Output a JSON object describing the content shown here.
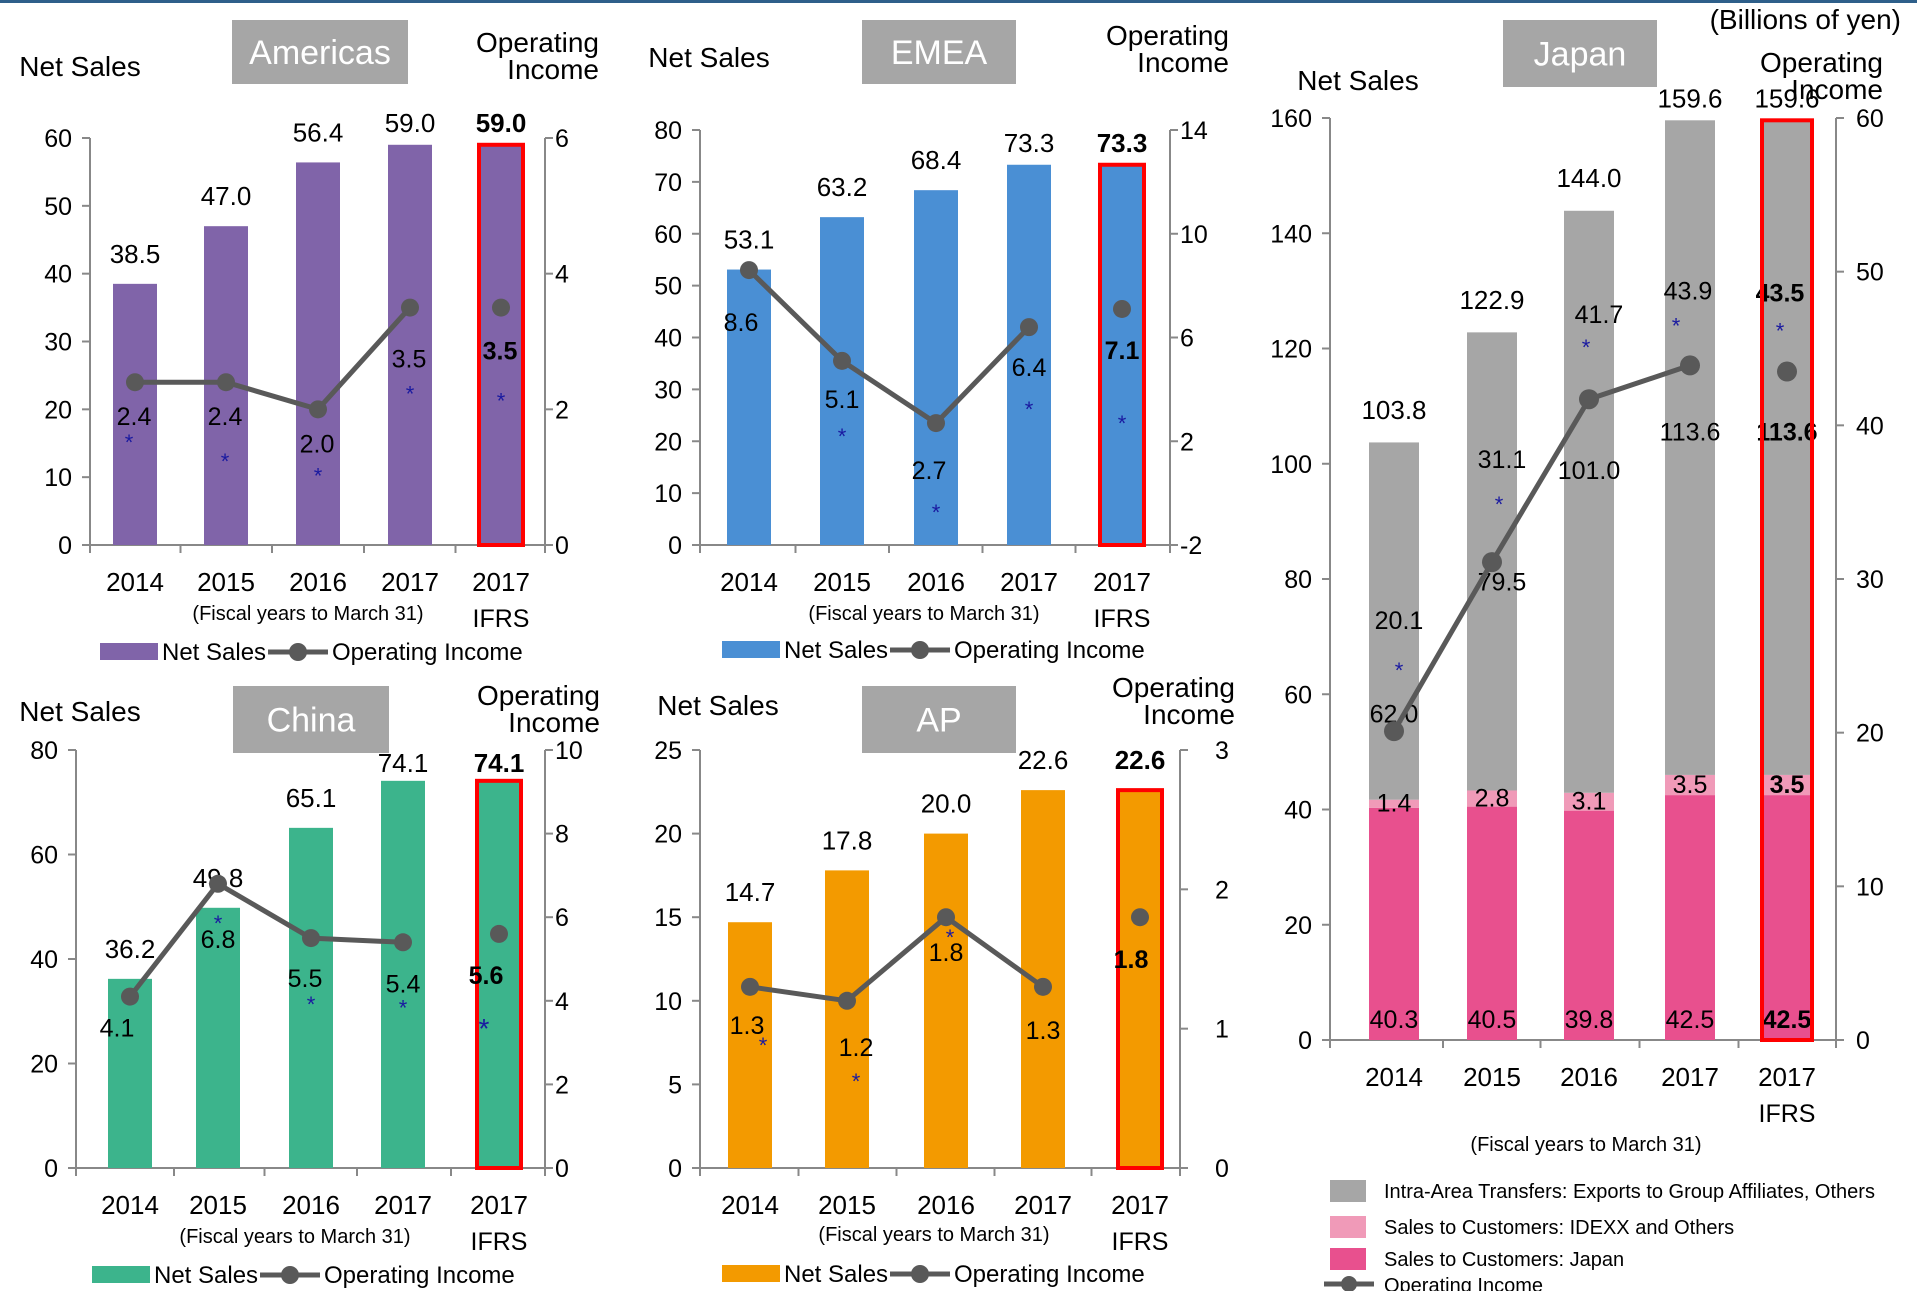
{
  "units_label": "(Billions of yen)",
  "colors": {
    "gray": "#a6a6a6",
    "highlight": "#ff0000",
    "line": "#595959",
    "star": "#1a1aa0"
  },
  "chart_data": [
    {
      "type": "bar",
      "title": "Americas",
      "left_axis_title": "Net Sales",
      "right_axis_title": [
        "Operating",
        "Income"
      ],
      "categories": [
        "2014",
        "2015",
        "2016",
        "2017",
        "2017"
      ],
      "category_sublabels": [
        "",
        "",
        "",
        "",
        "IFRS"
      ],
      "xlabel": "(Fiscal years to March 31)",
      "bar_color": "#8064a9",
      "left_ylim": [
        0,
        60
      ],
      "left_ticks": [
        "0",
        "10",
        "20",
        "30",
        "40",
        "50",
        "60"
      ],
      "right_ylim": [
        0,
        6
      ],
      "right_ticks": [
        "0",
        "2",
        "4",
        "6"
      ],
      "series": [
        {
          "name": "Net Sales",
          "axis": "left",
          "values": [
            38.5,
            47.0,
            56.4,
            59.0,
            59.0
          ],
          "labels": [
            "38.5",
            "47.0",
            "56.4",
            "59.0",
            "59.0"
          ]
        },
        {
          "name": "Operating Income",
          "axis": "right",
          "values": [
            2.4,
            2.4,
            2.0,
            3.5,
            3.5
          ],
          "labels": [
            "2.4",
            "2.4",
            "2.0",
            "3.5",
            "3.5"
          ]
        }
      ],
      "legend": [
        "Net Sales",
        "Operating Income"
      ],
      "highlight_index": 4
    },
    {
      "type": "bar",
      "title": "EMEA",
      "left_axis_title": "Net Sales",
      "right_axis_title": [
        "Operating",
        "Income"
      ],
      "categories": [
        "2014",
        "2015",
        "2016",
        "2017",
        "2017"
      ],
      "category_sublabels": [
        "",
        "",
        "",
        "",
        "IFRS"
      ],
      "xlabel": "(Fiscal years to March 31)",
      "bar_color": "#4a8fd4",
      "left_ylim": [
        0,
        80
      ],
      "left_ticks": [
        "0",
        "10",
        "20",
        "30",
        "40",
        "50",
        "60",
        "70",
        "80"
      ],
      "right_ylim": [
        -2,
        14
      ],
      "right_ticks": [
        "-2",
        "2",
        "6",
        "10",
        "14"
      ],
      "series": [
        {
          "name": "Net Sales",
          "axis": "left",
          "values": [
            53.1,
            63.2,
            68.4,
            73.3,
            73.3
          ],
          "labels": [
            "53.1",
            "63.2",
            "68.4",
            "73.3",
            "73.3"
          ]
        },
        {
          "name": "Operating Income",
          "axis": "right",
          "values": [
            8.6,
            5.1,
            2.7,
            6.4,
            7.1
          ],
          "labels": [
            "8.6",
            "5.1",
            "2.7",
            "6.4",
            "7.1"
          ]
        }
      ],
      "legend": [
        "Net Sales",
        "Operating Income"
      ],
      "highlight_index": 4
    },
    {
      "type": "bar",
      "title": "China",
      "left_axis_title": "Net Sales",
      "right_axis_title": [
        "Operating",
        "Income"
      ],
      "categories": [
        "2014",
        "2015",
        "2016",
        "2017",
        "2017"
      ],
      "category_sublabels": [
        "",
        "",
        "",
        "",
        "IFRS"
      ],
      "xlabel": "(Fiscal years to March 31)",
      "bar_color": "#3cb48c",
      "left_ylim": [
        0,
        80
      ],
      "left_ticks": [
        "0",
        "20",
        "40",
        "60",
        "80"
      ],
      "right_ylim": [
        0,
        10
      ],
      "right_ticks": [
        "0",
        "2",
        "4",
        "6",
        "8",
        "10"
      ],
      "series": [
        {
          "name": "Net Sales",
          "axis": "left",
          "values": [
            36.2,
            49.8,
            65.1,
            74.1,
            74.1
          ],
          "labels": [
            "36.2",
            "49.8",
            "65.1",
            "74.1",
            "74.1"
          ]
        },
        {
          "name": "Operating Income",
          "axis": "right",
          "values": [
            4.1,
            6.8,
            5.5,
            5.4,
            5.6
          ],
          "labels": [
            "4.1",
            "6.8",
            "5.5",
            "5.4",
            "5.6"
          ]
        }
      ],
      "legend": [
        "Net Sales",
        "Operating Income"
      ],
      "highlight_index": 4
    },
    {
      "type": "bar",
      "title": "AP",
      "left_axis_title": "Net Sales",
      "right_axis_title": [
        "Operating",
        "Income"
      ],
      "categories": [
        "2014",
        "2015",
        "2016",
        "2017",
        "2017"
      ],
      "category_sublabels": [
        "",
        "",
        "",
        "",
        "IFRS"
      ],
      "xlabel": "(Fiscal years to March 31)",
      "bar_color": "#f39a00",
      "left_ylim": [
        0,
        25
      ],
      "left_ticks": [
        "0",
        "5",
        "10",
        "15",
        "20",
        "25"
      ],
      "right_ylim": [
        0,
        3
      ],
      "right_ticks": [
        "0",
        "1",
        "2",
        "3"
      ],
      "series": [
        {
          "name": "Net Sales",
          "axis": "left",
          "values": [
            14.7,
            17.8,
            20.0,
            22.6,
            22.6
          ],
          "labels": [
            "14.7",
            "17.8",
            "20.0",
            "22.6",
            "22.6"
          ]
        },
        {
          "name": "Operating Income",
          "axis": "right",
          "values": [
            1.3,
            1.2,
            1.8,
            1.3,
            1.8
          ],
          "labels": [
            "1.3",
            "1.2",
            "1.8",
            "1.3",
            "1.8"
          ]
        }
      ],
      "legend": [
        "Net Sales",
        "Operating Income"
      ],
      "highlight_index": 4
    },
    {
      "type": "bar",
      "stacked": true,
      "title": "Japan",
      "left_axis_title": "Net Sales",
      "right_axis_title": [
        "Operating",
        "Income"
      ],
      "categories": [
        "2014",
        "2015",
        "2016",
        "2017",
        "2017"
      ],
      "category_sublabels": [
        "",
        "",
        "",
        "",
        "IFRS"
      ],
      "xlabel": "(Fiscal years to March 31)",
      "left_ylim": [
        0,
        160
      ],
      "left_ticks": [
        "0",
        "20",
        "40",
        "60",
        "80",
        "100",
        "120",
        "140",
        "160"
      ],
      "right_ylim": [
        0,
        60
      ],
      "right_ticks": [
        "0",
        "10",
        "20",
        "30",
        "40",
        "50",
        "60"
      ],
      "totals": [
        103.8,
        122.9,
        144.0,
        159.6,
        159.6
      ],
      "total_labels": [
        "103.8",
        "122.9",
        "144.0",
        "159.6",
        "159.6"
      ],
      "series": [
        {
          "name": "Sales to Customers: Japan",
          "color": "#e8508e",
          "values": [
            40.3,
            40.5,
            39.8,
            42.5,
            42.5
          ],
          "labels": [
            "40.3",
            "40.5",
            "39.8",
            "42.5",
            "42.5"
          ]
        },
        {
          "name": "Sales to Customers: IDEXX and Others",
          "color": "#f09ab8",
          "values": [
            1.4,
            2.8,
            3.1,
            3.5,
            3.5
          ],
          "labels": [
            "1.4",
            "2.8",
            "3.1",
            "3.5",
            "3.5"
          ]
        },
        {
          "name": "Intra-Area Transfers: Exports to Group Affiliates, Others",
          "color": "#a6a6a6",
          "values": [
            62.0,
            79.5,
            101.0,
            113.6,
            113.6
          ],
          "labels": [
            "62.0",
            "79.5",
            "101.0",
            "113.6",
            "113.6"
          ]
        }
      ],
      "line_series": {
        "name": "Operating Income",
        "values": [
          20.1,
          31.1,
          41.7,
          43.9,
          43.5
        ],
        "labels": [
          "20.1",
          "31.1",
          "41.7",
          "43.9",
          "43.5"
        ]
      },
      "legend": [
        "Intra-Area Transfers: Exports to Group Affiliates, Others",
        "Sales to Customers: IDEXX and Others",
        "Sales to Customers: Japan",
        "Operating Income"
      ],
      "highlight_index": 4
    }
  ]
}
